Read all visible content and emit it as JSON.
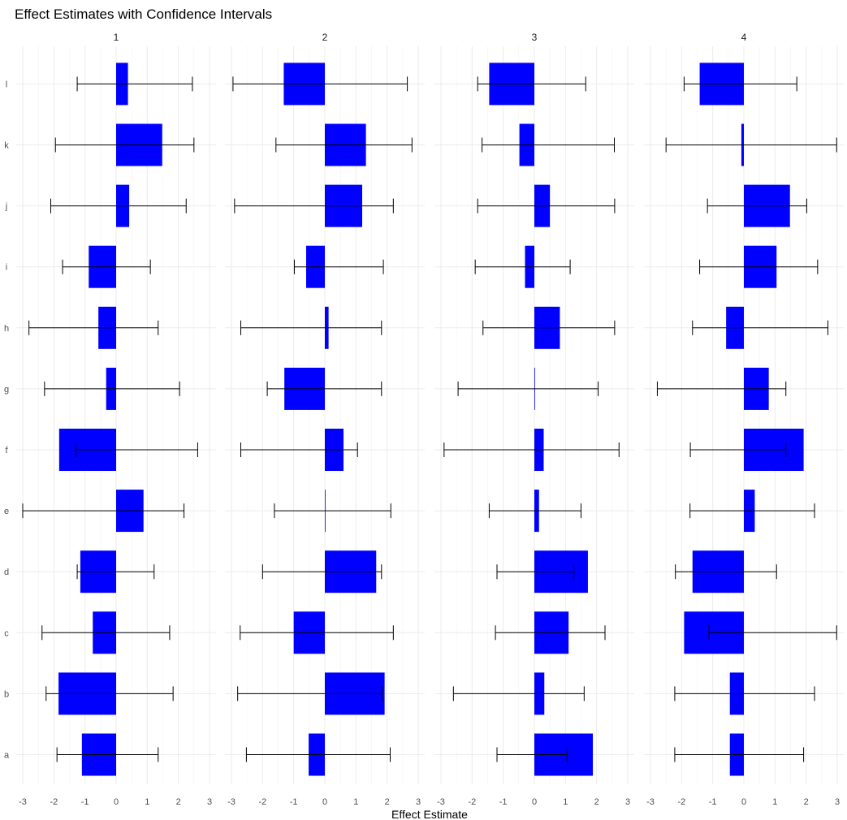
{
  "chart_data": {
    "type": "bar",
    "orientation": "horizontal",
    "title": "Effect Estimates with Confidence Intervals",
    "xlabel": "Effect Estimate",
    "ylabel": "",
    "xlim": [
      -3,
      3
    ],
    "x_ticks": [
      -3,
      -2,
      -1,
      0,
      1,
      2,
      3
    ],
    "categories": [
      "a",
      "b",
      "c",
      "d",
      "e",
      "f",
      "g",
      "h",
      "i",
      "j",
      "k",
      "l"
    ],
    "bar_color": "#0000ff",
    "errorbar_color": "#000000",
    "grid": true,
    "legend": "none",
    "panels": [
      {
        "label": "1",
        "estimates": [
          -1.1,
          -1.85,
          -0.75,
          -1.15,
          0.88,
          -1.83,
          -0.32,
          -0.57,
          -0.88,
          0.42,
          1.48,
          0.38
        ],
        "lower": [
          -1.9,
          -2.25,
          -2.38,
          -1.25,
          -3.0,
          -1.3,
          -2.3,
          -2.8,
          -1.72,
          -2.1,
          -1.95,
          -1.25
        ],
        "upper": [
          1.35,
          1.83,
          1.72,
          1.22,
          2.18,
          2.62,
          2.04,
          1.35,
          1.1,
          2.25,
          2.5,
          2.45
        ]
      },
      {
        "label": "2",
        "estimates": [
          -0.52,
          1.92,
          -1.0,
          1.65,
          0.0,
          0.6,
          -1.3,
          0.12,
          -0.6,
          1.2,
          1.32,
          -1.32
        ],
        "lower": [
          -2.52,
          -2.8,
          -2.72,
          -2.0,
          -1.62,
          -2.7,
          -1.85,
          -2.7,
          -0.98,
          -2.9,
          -1.57,
          -2.95
        ],
        "upper": [
          2.1,
          1.83,
          2.2,
          1.82,
          2.12,
          1.05,
          1.82,
          1.82,
          1.88,
          2.2,
          2.8,
          2.65
        ]
      },
      {
        "label": "3",
        "estimates": [
          1.88,
          0.32,
          1.1,
          1.72,
          0.15,
          0.3,
          0.0,
          0.82,
          -0.3,
          0.5,
          -0.48,
          -1.45
        ],
        "lower": [
          -1.2,
          -2.6,
          -1.25,
          -1.2,
          -1.45,
          -2.9,
          -2.45,
          -1.65,
          -1.9,
          -1.82,
          -1.68,
          -1.82
        ],
        "upper": [
          1.05,
          1.6,
          2.27,
          1.27,
          1.5,
          2.72,
          2.05,
          2.58,
          1.15,
          2.58,
          2.57,
          1.65
        ]
      },
      {
        "label": "4",
        "estimates": [
          -0.45,
          -0.45,
          -1.92,
          -1.65,
          0.35,
          1.92,
          0.8,
          -0.57,
          1.05,
          1.48,
          -0.08,
          -1.42
        ],
        "lower": [
          -2.22,
          -2.22,
          -1.12,
          -2.2,
          -1.73,
          -1.72,
          -2.78,
          -1.65,
          -1.42,
          -1.17,
          -2.5,
          -1.92
        ],
        "upper": [
          1.92,
          2.27,
          2.98,
          1.05,
          2.27,
          1.35,
          1.35,
          2.7,
          2.37,
          2.02,
          2.98,
          1.7
        ]
      }
    ]
  }
}
